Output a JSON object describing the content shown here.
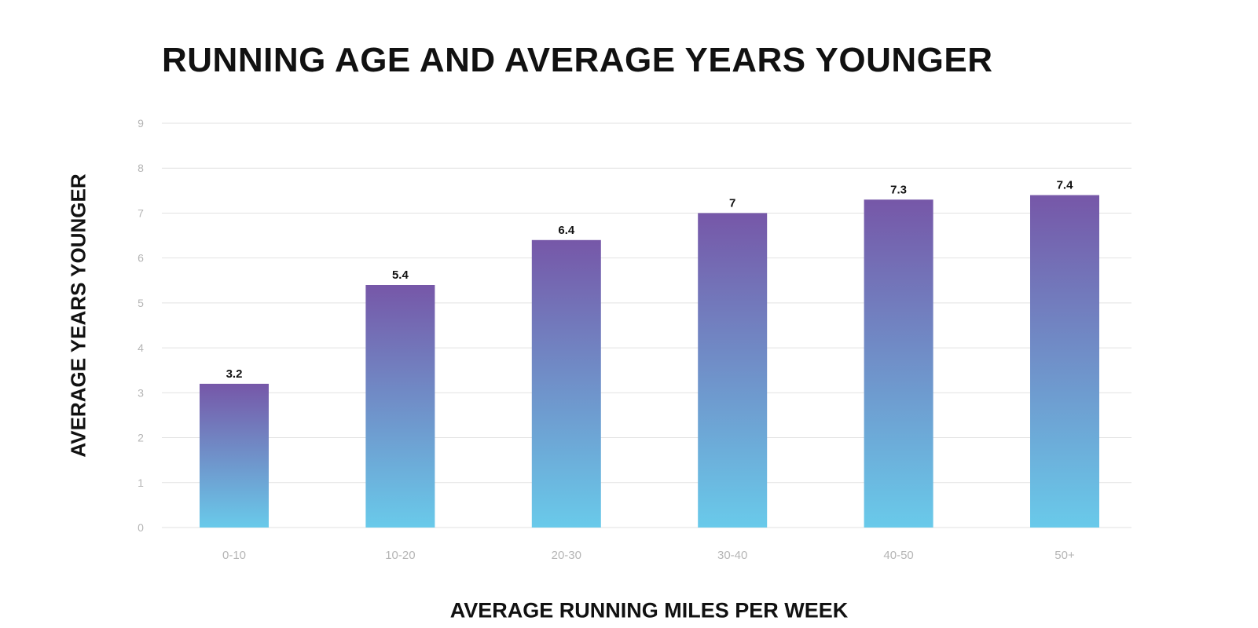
{
  "chart_data": {
    "type": "bar",
    "title": "RUNNING AGE AND AVERAGE YEARS YOUNGER",
    "xlabel": "AVERAGE RUNNING MILES PER WEEK",
    "ylabel": "AVERAGE YEARS YOUNGER",
    "categories": [
      "0-10",
      "10-20",
      "20-30",
      "30-40",
      "40-50",
      "50+"
    ],
    "values": [
      3.2,
      5.4,
      6.4,
      7,
      7.3,
      7.4
    ],
    "value_labels": [
      "3.2",
      "5.4",
      "6.4",
      "7",
      "7.3",
      "7.4"
    ],
    "ylim": [
      0,
      9
    ],
    "yticks": [
      "0",
      "1",
      "2",
      "3",
      "4",
      "5",
      "6",
      "7",
      "8",
      "9"
    ],
    "grid": true,
    "legend": "none",
    "colors": {
      "bar_top": "#7657a8",
      "bar_bottom": "#69caea",
      "grid": "#e2e2e2",
      "tick": "#b5b5b5",
      "text": "#111111"
    }
  }
}
